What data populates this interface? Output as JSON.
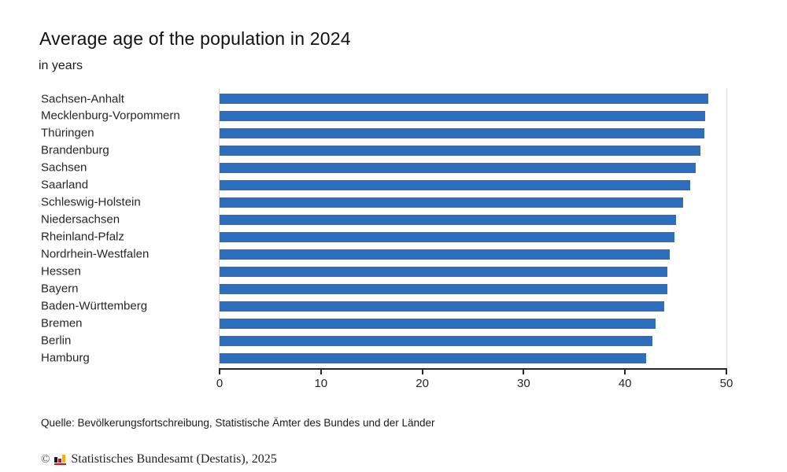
{
  "header": {
    "title": "Average age of the population in 2024",
    "subtitle": "in years"
  },
  "chart_data": {
    "type": "bar",
    "orientation": "horizontal",
    "title": "Average age of the population in 2024",
    "subtitle": "in years",
    "xlabel": "",
    "ylabel": "",
    "xlim": [
      0,
      50
    ],
    "xticks": [
      0,
      10,
      20,
      30,
      40,
      50
    ],
    "grid": false,
    "legend": "none",
    "bar_color": "#2d6ebc",
    "categories": [
      "Sachsen-Anhalt",
      "Mecklenburg-Vorpommern",
      "Thüringen",
      "Brandenburg",
      "Sachsen",
      "Saarland",
      "Schleswig-Holstein",
      "Niedersachsen",
      "Rheinland-Pfalz",
      "Nordrhein-Westfalen",
      "Hessen",
      "Bayern",
      "Baden-Württemberg",
      "Bremen",
      "Berlin",
      "Hamburg"
    ],
    "values": [
      48.2,
      47.9,
      47.8,
      47.4,
      47.0,
      46.4,
      45.7,
      45.0,
      44.9,
      44.4,
      44.2,
      44.2,
      43.9,
      43.0,
      42.7,
      42.1
    ]
  },
  "footer": {
    "source": "Quelle: Bevölkerungsfortschreibung, Statistische Ämter des Bundes und der Länder",
    "copyright_symbol": "©",
    "copyright": "Statistisches Bundesamt (Destatis), 2025",
    "logo_colors": {
      "black": "#1a1a1a",
      "red": "#e30613",
      "gold": "#f0b400"
    }
  }
}
